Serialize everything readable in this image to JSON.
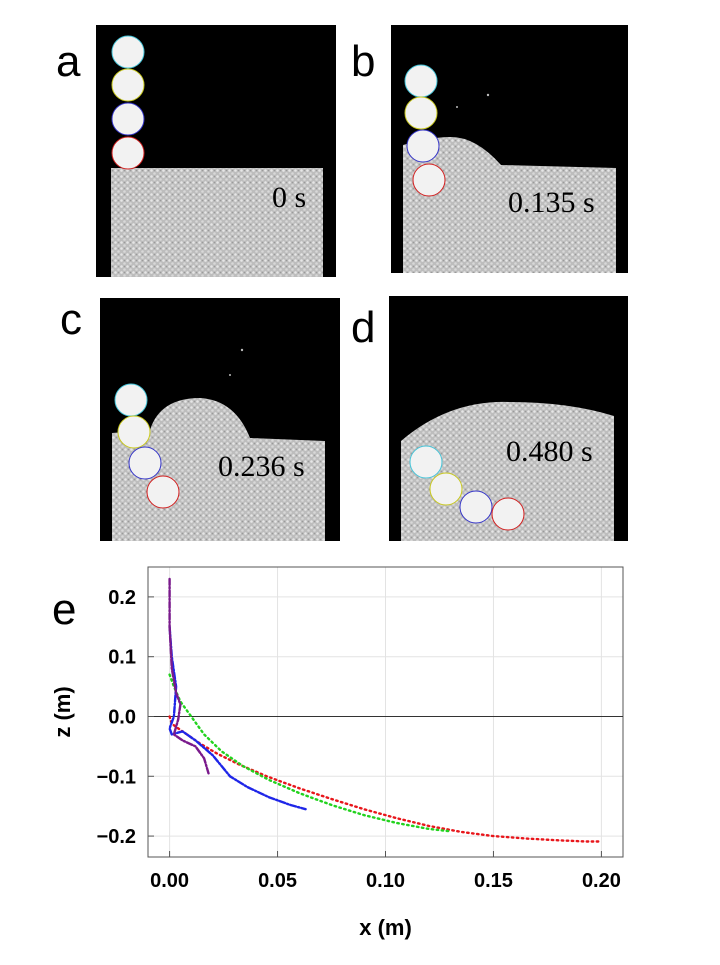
{
  "panels": {
    "a": {
      "label": "a",
      "time": "0 s"
    },
    "b": {
      "label": "b",
      "time": "0.135 s"
    },
    "c": {
      "label": "c",
      "time": "0.236 s"
    },
    "d": {
      "label": "d",
      "time": "0.480 s"
    }
  },
  "plot_label": "e",
  "colors": {
    "granular": "#c9c9c9",
    "background": "#000000",
    "sphere": "#f2f2f2",
    "red": "#e8161b",
    "green": "#22d21e",
    "blue": "#1f26e8",
    "purple": "#7a1a8c"
  },
  "chart_data": {
    "type": "line",
    "xlabel": "x (m)",
    "ylabel": "z (m)",
    "xlim": [
      -0.01,
      0.21
    ],
    "ylim": [
      -0.235,
      0.25
    ],
    "xticks": [
      "0.00",
      "0.05",
      "0.10",
      "0.15",
      "0.20"
    ],
    "xtick_values": [
      0,
      0.05,
      0.1,
      0.15,
      0.2
    ],
    "yticks": [
      "0.2",
      "0.1",
      "0.0",
      "−0.1",
      "−0.2"
    ],
    "ytick_values": [
      0.2,
      0.1,
      0.0,
      -0.1,
      -0.2
    ],
    "grid": true,
    "series": [
      {
        "color": "#e8161b",
        "style": "dotted",
        "x": [
          0.0,
          0.001,
          0.004,
          0.008,
          0.014,
          0.022,
          0.032,
          0.045,
          0.06,
          0.075,
          0.09,
          0.105,
          0.12,
          0.135,
          0.15,
          0.165,
          0.18,
          0.193,
          0.2
        ],
        "y": [
          0.0,
          -0.012,
          -0.02,
          -0.03,
          -0.045,
          -0.062,
          -0.08,
          -0.1,
          -0.12,
          -0.138,
          -0.155,
          -0.17,
          -0.183,
          -0.193,
          -0.2,
          -0.204,
          -0.207,
          -0.209,
          -0.209
        ]
      },
      {
        "color": "#22d21e",
        "style": "dotted",
        "x": [
          0.0,
          0.002,
          0.005,
          0.01,
          0.016,
          0.024,
          0.034,
          0.046,
          0.06,
          0.075,
          0.09,
          0.105,
          0.12,
          0.13
        ],
        "y": [
          0.07,
          0.05,
          0.025,
          0.0,
          -0.03,
          -0.058,
          -0.083,
          -0.106,
          -0.128,
          -0.148,
          -0.165,
          -0.178,
          -0.188,
          -0.192
        ]
      },
      {
        "color": "#1f26e8",
        "style": "mixed",
        "x": [
          0.0,
          0.001,
          0.003,
          0.002,
          0.0,
          0.001,
          0.006,
          0.012,
          0.02,
          0.028,
          0.036,
          0.046,
          0.056,
          0.063
        ],
        "y": [
          0.15,
          0.1,
          0.05,
          0.0,
          -0.02,
          -0.03,
          -0.025,
          -0.04,
          -0.065,
          -0.1,
          -0.118,
          -0.135,
          -0.148,
          -0.155
        ]
      },
      {
        "color": "#7a1a8c",
        "style": "mixed",
        "x": [
          0.0,
          0.0,
          0.001,
          0.003,
          0.005,
          0.004,
          0.002,
          0.006,
          0.012,
          0.016,
          0.018
        ],
        "y": [
          0.23,
          0.15,
          0.08,
          0.04,
          0.02,
          -0.005,
          -0.03,
          -0.04,
          -0.05,
          -0.07,
          -0.095
        ]
      }
    ]
  }
}
